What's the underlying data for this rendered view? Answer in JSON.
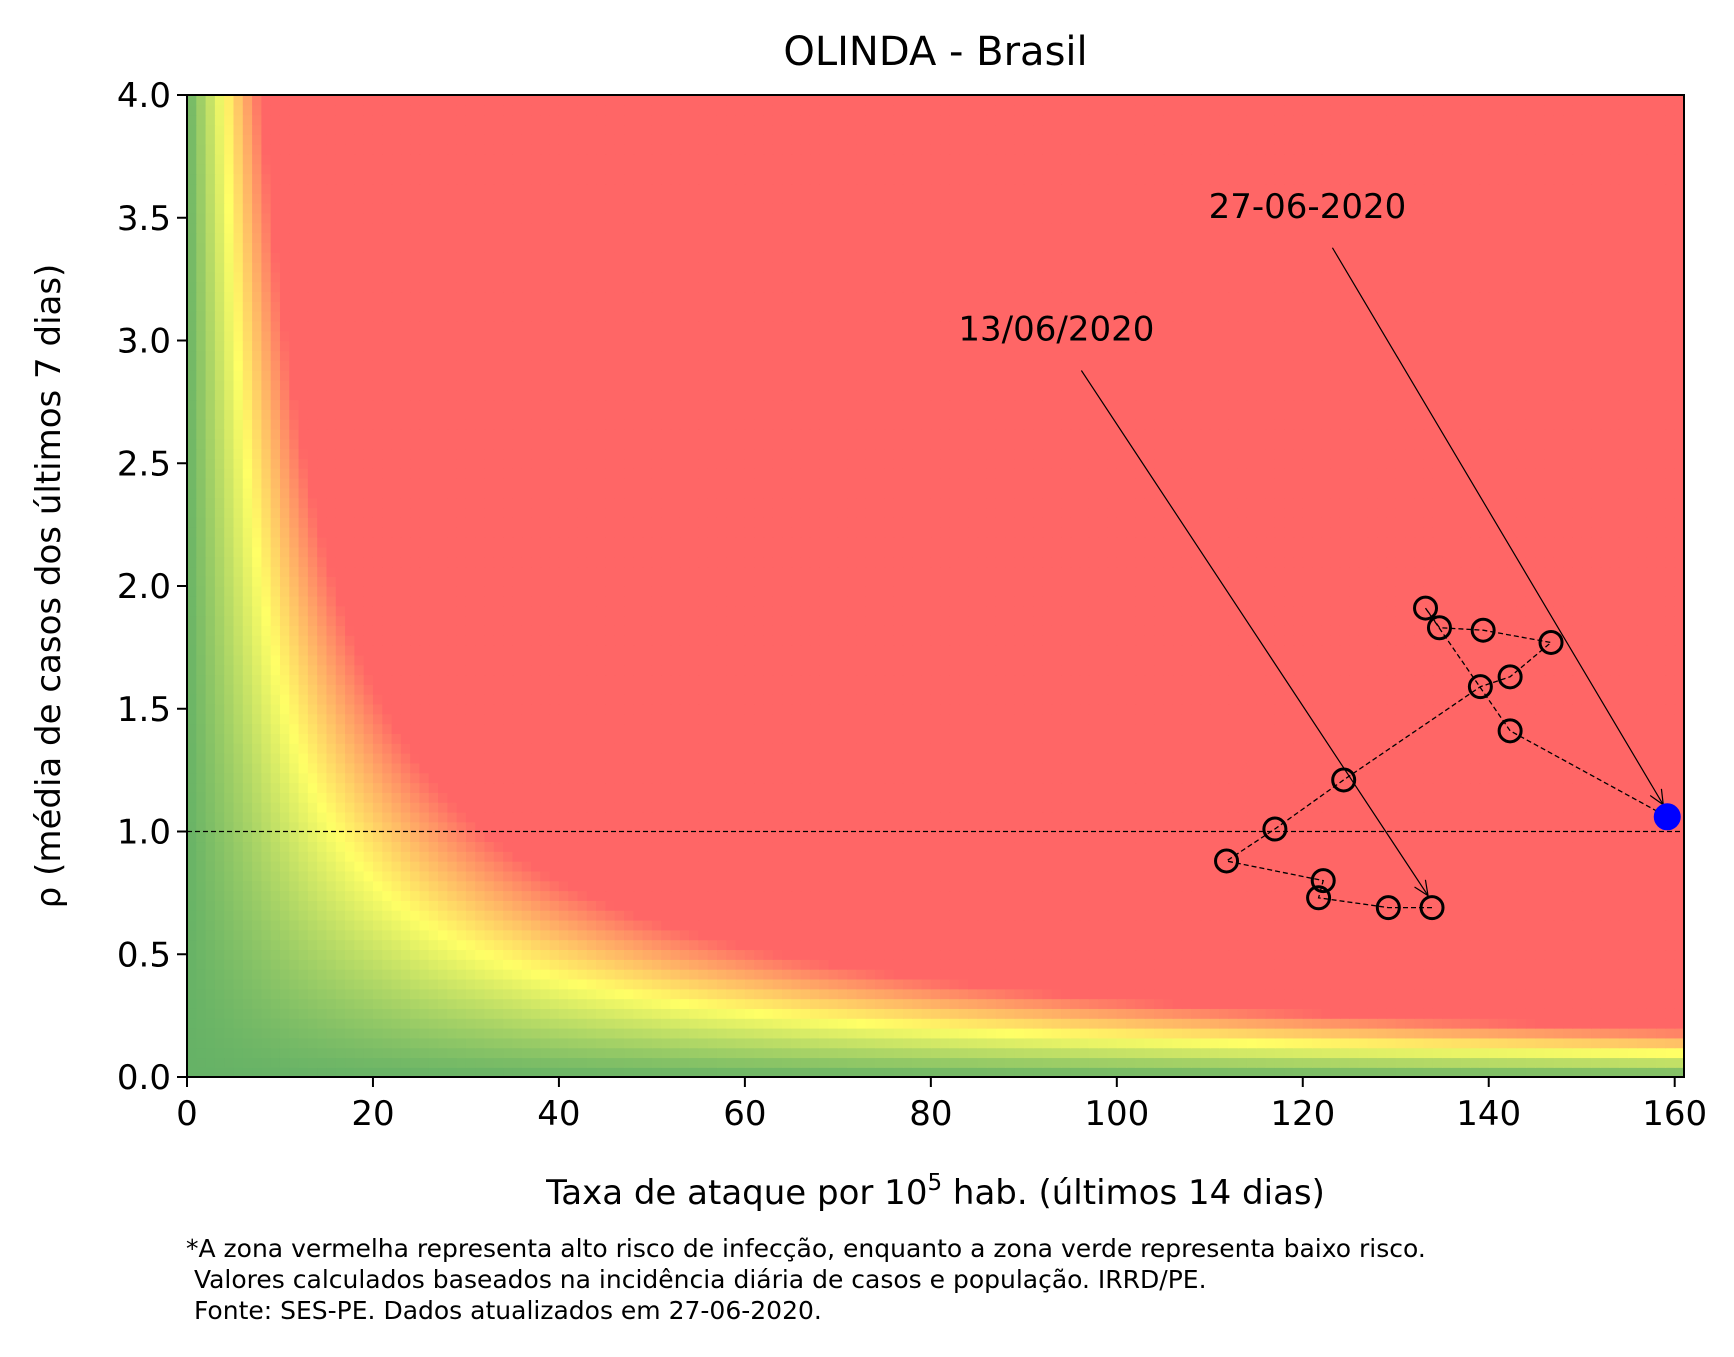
{
  "chart_data": {
    "type": "scatter",
    "title": "OLINDA - Brasil",
    "xlabel": "Taxa de ataque por 10",
    "xlabel_sup": "5",
    "xlabel_tail": " hab. (últimos 14 dias)",
    "ylabel": "ρ (média de casos dos últimos 7 dias)",
    "xlim": [
      0,
      161
    ],
    "ylim": [
      0,
      4
    ],
    "xticks": [
      0,
      20,
      40,
      60,
      80,
      100,
      120,
      140,
      160
    ],
    "yticks": [
      0.0,
      0.5,
      1.0,
      1.5,
      2.0,
      2.5,
      3.0,
      3.5,
      4.0
    ],
    "ytick_labels": [
      "0.0",
      "0.5",
      "1.0",
      "1.5",
      "2.0",
      "2.5",
      "3.0",
      "3.5",
      "4.0"
    ],
    "reference_line": {
      "y": 1.0,
      "style": "dashed"
    },
    "background": {
      "type": "risk-heatmap",
      "colors": {
        "low": "#66b266",
        "mid": "#ffff66",
        "high": "#ff6666"
      }
    },
    "points": [
      {
        "x": 133.9,
        "y": 0.69
      },
      {
        "x": 129.2,
        "y": 0.69
      },
      {
        "x": 121.7,
        "y": 0.73
      },
      {
        "x": 122.2,
        "y": 0.8
      },
      {
        "x": 111.8,
        "y": 0.88
      },
      {
        "x": 117.0,
        "y": 1.01
      },
      {
        "x": 124.4,
        "y": 1.21
      },
      {
        "x": 139.1,
        "y": 1.59
      },
      {
        "x": 142.3,
        "y": 1.63
      },
      {
        "x": 146.7,
        "y": 1.77
      },
      {
        "x": 139.4,
        "y": 1.82
      },
      {
        "x": 134.7,
        "y": 1.83
      },
      {
        "x": 133.2,
        "y": 1.91
      },
      {
        "x": 142.3,
        "y": 1.41
      },
      {
        "x": 159.2,
        "y": 1.06
      }
    ],
    "point_style": {
      "marker": "open-circle",
      "edge_color": "#000000",
      "last_color": "#0000ff"
    },
    "annotations": [
      {
        "text": "13/06/2020",
        "text_x": 93.5,
        "text_y": 3.0,
        "target_x": 133.9,
        "target_y": 0.69
      },
      {
        "text": "27-06-2020",
        "text_x": 120.5,
        "text_y": 3.5,
        "target_x": 159.2,
        "target_y": 1.06
      }
    ]
  },
  "footnote": {
    "line1": "*A zona vermelha representa alto risco de infecção, enquanto a zona verde representa baixo risco.",
    "line2": " Valores calculados baseados na incidência diária de casos e população. IRRD/PE.",
    "line3": " Fonte: SES-PE. Dados atualizados em 27-06-2020."
  }
}
